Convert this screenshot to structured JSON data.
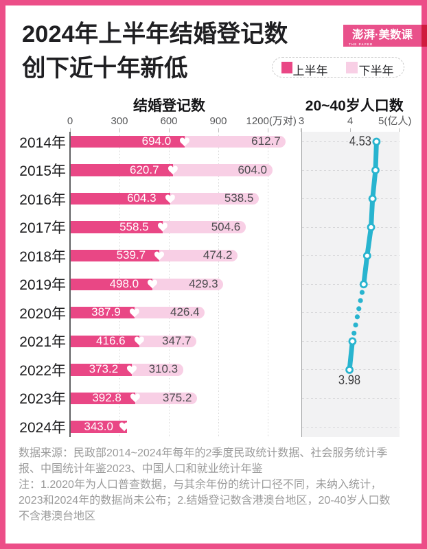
{
  "title": {
    "lines": [
      "2024年上半年结婚登记数",
      "创下近十年新低"
    ]
  },
  "logo": {
    "text": "澎湃·美数课",
    "subtext": "THE PAPER"
  },
  "legend": {
    "items": [
      {
        "label": "上半年",
        "color": "#e94785"
      },
      {
        "label": "下半年",
        "color": "#f8cfe5"
      }
    ]
  },
  "colors": {
    "frame_pink": "#ec4e88",
    "first_half_pink": "#e94785",
    "second_half_pink": "#f8cfe5",
    "population_teal": "#28b4cf",
    "logo_pink": "#e9518b",
    "logo_red": "#d01c3e"
  },
  "chart_data": [
    {
      "type": "bar",
      "orientation": "horizontal",
      "stacked": true,
      "title": "结婚登记数",
      "x_unit": "万对",
      "xlim": [
        0,
        1200
      ],
      "x_tick_labels": [
        "0",
        "300",
        "600",
        "900",
        "1200(万对)"
      ],
      "x_ticks": [
        0,
        300,
        600,
        900,
        1200
      ],
      "categories": [
        "2014年",
        "2015年",
        "2016年",
        "2017年",
        "2018年",
        "2019年",
        "2020年",
        "2021年",
        "2022年",
        "2023年",
        "2024年"
      ],
      "series": [
        {
          "name": "上半年",
          "values": [
            694.0,
            620.7,
            604.3,
            558.5,
            539.7,
            498.0,
            387.9,
            416.6,
            373.2,
            392.8,
            343.0
          ]
        },
        {
          "name": "下半年",
          "values": [
            612.7,
            604.0,
            538.5,
            504.6,
            474.2,
            429.3,
            426.4,
            347.7,
            310.3,
            375.2,
            null
          ]
        }
      ],
      "grid": "vertical-dotted",
      "legend_position": "top-right"
    },
    {
      "type": "line",
      "title": "20~40岁人口数",
      "x_unit": "亿人",
      "xlim": [
        3,
        5
      ],
      "x_tick_labels": [
        "3",
        "4",
        "5(亿人)"
      ],
      "x_ticks": [
        3,
        4,
        5
      ],
      "categories": [
        "2014年",
        "2015年",
        "2016年",
        "2017年",
        "2018年",
        "2019年",
        "2020年",
        "2021年",
        "2022年",
        "2023年",
        "2024年"
      ],
      "values": [
        4.53,
        4.51,
        4.45,
        4.42,
        4.34,
        4.27,
        null,
        4.04,
        3.98,
        null,
        null
      ],
      "dotted_gap_year": "2020年",
      "annotations": [
        {
          "category": "2014年",
          "label": "4.53",
          "position": "left"
        },
        {
          "category": "2022年",
          "label": "3.98",
          "position": "below"
        }
      ],
      "grid": "horizontal-dashed"
    }
  ],
  "footer": {
    "lines": [
      "数据来源：民政部2014~2024年每年的2季度民政统计数据、社会服务统计季",
      "报、中国统计年鉴2023、中国人口和就业统计年鉴",
      "注：1.2020年为人口普查数据，与其余年份的统计口径不同，未纳入统计，",
      "2023和2024年的数据尚未公布；2.结婚登记数含港澳台地区，20-40岁人口数",
      "不含港澳台地区"
    ]
  }
}
